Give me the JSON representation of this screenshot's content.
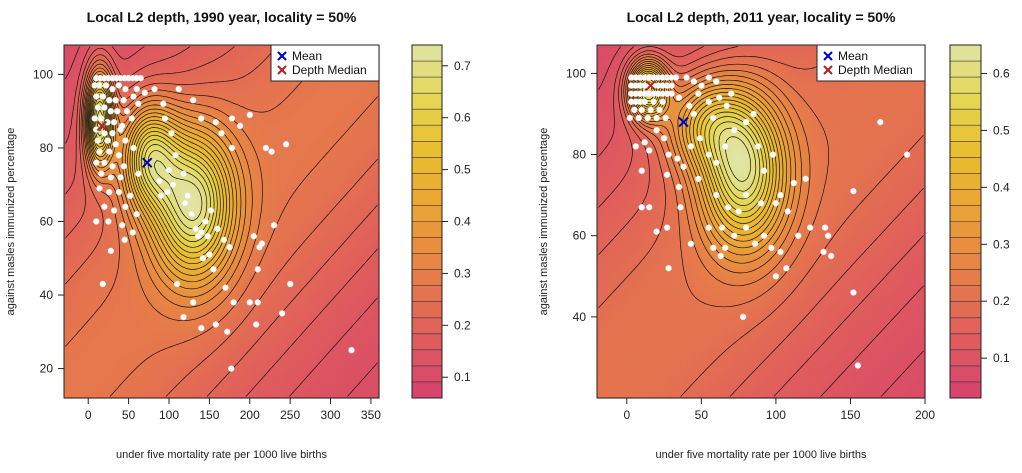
{
  "chart_data": [
    {
      "type": "contour",
      "title": "Local L2 depth, 1990 year, locality = 50%",
      "xlabel": "under five mortality rate per 1000 live births",
      "ylabel": "against masles immunized percentage",
      "xlim": [
        -30,
        360
      ],
      "ylim": [
        12,
        108
      ],
      "xticks": [
        "0",
        "50",
        "100",
        "150",
        "200",
        "250",
        "300",
        "350"
      ],
      "yticks": [
        "20",
        "40",
        "60",
        "80",
        "100"
      ],
      "legend": {
        "position": "top-right",
        "entries": [
          {
            "label": "Mean",
            "color": "#0000cc",
            "marker": "x"
          },
          {
            "label": "Depth Median",
            "color": "#b22222",
            "marker": "x"
          }
        ]
      },
      "mean": [
        73,
        76
      ],
      "depth_median": [
        17,
        86
      ],
      "colorbar": {
        "min": 0.06,
        "max": 0.74,
        "ticks": [
          "0.1",
          "0.2",
          "0.3",
          "0.4",
          "0.5",
          "0.6",
          "0.7"
        ]
      },
      "density_peaks": [
        {
          "x": 14,
          "y": 88,
          "sx": 12,
          "sy": 9,
          "w": 1.0
        },
        {
          "x": 130,
          "y": 65,
          "sx": 35,
          "sy": 14,
          "w": 0.85
        },
        {
          "x": 75,
          "y": 78,
          "sx": 25,
          "sy": 10,
          "w": 0.7
        }
      ],
      "points": [
        [
          10,
          99
        ],
        [
          15,
          99
        ],
        [
          20,
          99
        ],
        [
          25,
          99
        ],
        [
          30,
          99
        ],
        [
          35,
          99
        ],
        [
          40,
          99
        ],
        [
          45,
          99
        ],
        [
          50,
          99
        ],
        [
          55,
          99
        ],
        [
          60,
          99
        ],
        [
          65,
          99
        ],
        [
          8,
          97
        ],
        [
          14,
          97
        ],
        [
          22,
          97
        ],
        [
          30,
          96
        ],
        [
          38,
          97
        ],
        [
          46,
          96
        ],
        [
          60,
          96
        ],
        [
          10,
          94
        ],
        [
          18,
          94
        ],
        [
          26,
          93
        ],
        [
          34,
          93
        ],
        [
          44,
          93
        ],
        [
          56,
          94
        ],
        [
          70,
          95
        ],
        [
          12,
          91
        ],
        [
          20,
          91
        ],
        [
          28,
          90
        ],
        [
          36,
          90
        ],
        [
          48,
          90
        ],
        [
          62,
          92
        ],
        [
          8,
          88
        ],
        [
          16,
          88
        ],
        [
          24,
          87
        ],
        [
          32,
          87
        ],
        [
          42,
          86
        ],
        [
          54,
          88
        ],
        [
          10,
          85
        ],
        [
          20,
          84
        ],
        [
          30,
          84
        ],
        [
          40,
          85
        ],
        [
          12,
          82
        ],
        [
          24,
          82
        ],
        [
          34,
          81
        ],
        [
          46,
          82
        ],
        [
          14,
          79
        ],
        [
          26,
          79
        ],
        [
          38,
          78
        ],
        [
          56,
          80
        ],
        [
          10,
          76
        ],
        [
          20,
          76
        ],
        [
          30,
          75
        ],
        [
          44,
          75
        ],
        [
          16,
          73
        ],
        [
          28,
          72
        ],
        [
          40,
          72
        ],
        [
          62,
          73
        ],
        [
          14,
          69
        ],
        [
          26,
          68
        ],
        [
          38,
          68
        ],
        [
          52,
          67
        ],
        [
          20,
          64
        ],
        [
          32,
          63
        ],
        [
          46,
          64
        ],
        [
          60,
          62
        ],
        [
          10,
          60
        ],
        [
          25,
          60
        ],
        [
          42,
          59
        ],
        [
          55,
          57
        ],
        [
          28,
          52
        ],
        [
          18,
          43
        ],
        [
          45,
          55
        ],
        [
          82,
          96
        ],
        [
          93,
          92
        ],
        [
          112,
          96
        ],
        [
          130,
          93
        ],
        [
          140,
          88
        ],
        [
          158,
          87
        ],
        [
          165,
          84
        ],
        [
          178,
          88
        ],
        [
          178,
          80
        ],
        [
          188,
          86
        ],
        [
          200,
          89
        ],
        [
          220,
          80
        ],
        [
          95,
          88
        ],
        [
          103,
          84
        ],
        [
          108,
          78
        ],
        [
          100,
          74
        ],
        [
          88,
          71
        ],
        [
          90,
          67
        ],
        [
          98,
          68
        ],
        [
          105,
          70
        ],
        [
          118,
          73
        ],
        [
          123,
          67
        ],
        [
          120,
          65
        ],
        [
          128,
          62
        ],
        [
          133,
          58
        ],
        [
          140,
          57
        ],
        [
          145,
          60
        ],
        [
          152,
          63
        ],
        [
          160,
          58
        ],
        [
          168,
          55
        ],
        [
          175,
          53
        ],
        [
          136,
          56
        ],
        [
          148,
          56
        ],
        [
          150,
          51
        ],
        [
          142,
          50
        ],
        [
          155,
          47
        ],
        [
          170,
          42
        ],
        [
          180,
          38
        ],
        [
          200,
          38
        ],
        [
          210,
          38
        ],
        [
          110,
          43
        ],
        [
          130,
          38
        ],
        [
          140,
          31
        ],
        [
          118,
          34
        ],
        [
          158,
          32
        ],
        [
          172,
          30
        ],
        [
          208,
          32
        ],
        [
          230,
          59
        ],
        [
          205,
          56
        ],
        [
          212,
          53
        ],
        [
          215,
          54
        ],
        [
          210,
          47
        ],
        [
          250,
          43
        ],
        [
          240,
          35
        ],
        [
          245,
          81
        ],
        [
          227,
          79
        ],
        [
          177,
          20
        ],
        [
          326,
          25
        ]
      ]
    },
    {
      "type": "contour",
      "title": "Local L2 depth, 2011 year, locality = 50%",
      "xlabel": "under five mortality rate per 1000 live births",
      "ylabel": "against masles immunized percentage",
      "xlim": [
        -20,
        200
      ],
      "ylim": [
        20,
        107
      ],
      "xticks": [
        "0",
        "50",
        "100",
        "150",
        "200"
      ],
      "yticks": [
        "40",
        "60",
        "80",
        "100"
      ],
      "legend": {
        "position": "top-right",
        "entries": [
          {
            "label": "Mean",
            "color": "#0000cc",
            "marker": "x"
          },
          {
            "label": "Depth Median",
            "color": "#b22222",
            "marker": "x"
          }
        ]
      },
      "mean": [
        38,
        88
      ],
      "depth_median": [
        16,
        97
      ],
      "colorbar": {
        "min": 0.03,
        "max": 0.65,
        "ticks": [
          "0.1",
          "0.2",
          "0.3",
          "0.4",
          "0.5",
          "0.6"
        ]
      },
      "density_peaks": [
        {
          "x": 14,
          "y": 96,
          "sx": 9,
          "sy": 5,
          "w": 1.0
        },
        {
          "x": 78,
          "y": 76,
          "sx": 20,
          "sy": 13,
          "w": 0.9
        },
        {
          "x": 52,
          "y": 88,
          "sx": 20,
          "sy": 8,
          "w": 0.5
        }
      ],
      "points": [
        [
          3,
          99
        ],
        [
          6,
          99
        ],
        [
          9,
          99
        ],
        [
          12,
          99
        ],
        [
          15,
          99
        ],
        [
          18,
          99
        ],
        [
          21,
          99
        ],
        [
          24,
          99
        ],
        [
          27,
          99
        ],
        [
          30,
          99
        ],
        [
          33,
          99
        ],
        [
          3,
          97
        ],
        [
          6,
          97
        ],
        [
          9,
          97
        ],
        [
          12,
          97
        ],
        [
          15,
          97
        ],
        [
          18,
          97
        ],
        [
          21,
          97
        ],
        [
          24,
          97
        ],
        [
          27,
          97
        ],
        [
          30,
          97
        ],
        [
          3,
          95
        ],
        [
          6,
          95
        ],
        [
          9,
          95
        ],
        [
          12,
          95
        ],
        [
          15,
          95
        ],
        [
          18,
          95
        ],
        [
          21,
          95
        ],
        [
          24,
          95
        ],
        [
          27,
          95
        ],
        [
          30,
          95
        ],
        [
          3,
          93
        ],
        [
          6,
          93
        ],
        [
          9,
          93
        ],
        [
          12,
          93
        ],
        [
          18,
          93
        ],
        [
          24,
          93
        ],
        [
          5,
          91
        ],
        [
          10,
          91
        ],
        [
          16,
          91
        ],
        [
          22,
          91
        ],
        [
          2,
          89
        ],
        [
          8,
          89
        ],
        [
          14,
          89
        ],
        [
          20,
          89
        ],
        [
          26,
          89
        ],
        [
          40,
          99
        ],
        [
          45,
          98
        ],
        [
          50,
          97
        ],
        [
          55,
          99
        ],
        [
          60,
          98
        ],
        [
          48,
          95
        ],
        [
          35,
          94
        ],
        [
          42,
          92
        ],
        [
          55,
          93
        ],
        [
          62,
          94
        ],
        [
          70,
          95
        ],
        [
          67,
          92
        ],
        [
          45,
          90
        ],
        [
          58,
          89
        ],
        [
          20,
          86
        ],
        [
          25,
          84
        ],
        [
          12,
          83
        ],
        [
          6,
          82
        ],
        [
          15,
          81
        ],
        [
          28,
          80
        ],
        [
          34,
          79
        ],
        [
          43,
          82
        ],
        [
          49,
          84
        ],
        [
          38,
          77
        ],
        [
          27,
          75
        ],
        [
          10,
          76
        ],
        [
          35,
          72
        ],
        [
          48,
          74
        ],
        [
          55,
          80
        ],
        [
          60,
          78
        ],
        [
          66,
          82
        ],
        [
          72,
          86
        ],
        [
          80,
          88
        ],
        [
          85,
          90
        ],
        [
          88,
          82
        ],
        [
          92,
          76
        ],
        [
          98,
          80
        ],
        [
          103,
          70
        ],
        [
          112,
          73
        ],
        [
          120,
          74
        ],
        [
          60,
          70
        ],
        [
          68,
          67
        ],
        [
          75,
          66
        ],
        [
          80,
          70
        ],
        [
          90,
          68
        ],
        [
          100,
          68
        ],
        [
          108,
          66
        ],
        [
          115,
          60
        ],
        [
          123,
          62
        ],
        [
          133,
          62
        ],
        [
          64,
          62
        ],
        [
          72,
          60
        ],
        [
          80,
          62
        ],
        [
          86,
          58
        ],
        [
          92,
          60
        ],
        [
          97,
          57
        ],
        [
          103,
          56
        ],
        [
          107,
          52
        ],
        [
          100,
          50
        ],
        [
          10,
          67
        ],
        [
          15,
          67
        ],
        [
          20,
          61
        ],
        [
          27,
          62
        ],
        [
          28,
          52
        ],
        [
          36,
          67
        ],
        [
          43,
          58
        ],
        [
          58,
          57
        ],
        [
          55,
          62
        ],
        [
          63,
          55
        ],
        [
          66,
          57
        ],
        [
          132,
          56
        ],
        [
          135,
          60
        ],
        [
          152,
          71
        ],
        [
          152,
          46
        ],
        [
          170,
          88
        ],
        [
          188,
          80
        ],
        [
          155,
          28
        ],
        [
          78,
          40
        ],
        [
          137,
          55
        ]
      ]
    }
  ]
}
